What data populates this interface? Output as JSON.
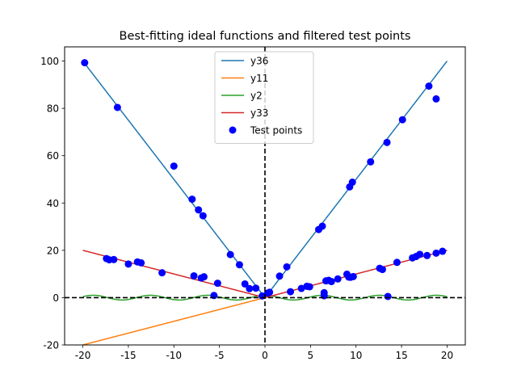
{
  "chart_data": {
    "type": "line",
    "title": "Best-fitting ideal functions and filtered test points",
    "xlabel": "",
    "ylabel": "",
    "xlim": [
      -22,
      22
    ],
    "ylim": [
      -20,
      106
    ],
    "xticks": [
      -20,
      -15,
      -10,
      -5,
      0,
      5,
      10,
      15,
      20
    ],
    "yticks": [
      -20,
      0,
      20,
      40,
      60,
      80,
      100
    ],
    "grid": false,
    "legend_position": "top-center",
    "reference_lines": [
      {
        "orientation": "horizontal",
        "value": 0,
        "style": "dashed",
        "color": "#000000"
      },
      {
        "orientation": "vertical",
        "value": 0,
        "style": "dashed",
        "color": "#000000"
      }
    ],
    "series": [
      {
        "name": "y36",
        "kind": "line",
        "color": "#1f77b4",
        "formula": "5*|x|",
        "x_range": [
          -20,
          20
        ]
      },
      {
        "name": "y11",
        "kind": "line",
        "color": "#ff7f0e",
        "formula": "x",
        "x_range": [
          -20,
          0
        ]
      },
      {
        "name": "y2",
        "kind": "line",
        "color": "#2ca02c",
        "formula": "cos(x)",
        "x_range": [
          -20,
          20
        ]
      },
      {
        "name": "y33",
        "kind": "line",
        "color": "#d62728",
        "formula": "|x|",
        "x_range": [
          -20,
          20
        ]
      },
      {
        "name": "Test points",
        "kind": "scatter",
        "color": "#0000ff",
        "points": [
          [
            -19.8,
            99.3
          ],
          [
            -16.2,
            80.4
          ],
          [
            -10.0,
            55.6
          ],
          [
            -8.0,
            41.6
          ],
          [
            -7.3,
            37.1
          ],
          [
            -6.8,
            34.6
          ],
          [
            -3.8,
            18.2
          ],
          [
            -2.8,
            13.9
          ],
          [
            -2.2,
            5.8
          ],
          [
            -1.7,
            3.8
          ],
          [
            -1.0,
            4.0
          ],
          [
            -0.3,
            0.7
          ],
          [
            0.3,
            1.9
          ],
          [
            0.5,
            2.3
          ],
          [
            1.6,
            9.1
          ],
          [
            2.4,
            13.0
          ],
          [
            5.9,
            28.8
          ],
          [
            6.3,
            30.2
          ],
          [
            9.3,
            46.8
          ],
          [
            9.6,
            48.8
          ],
          [
            11.6,
            57.4
          ],
          [
            13.4,
            65.6
          ],
          [
            15.1,
            75.2
          ],
          [
            18.0,
            89.4
          ],
          [
            18.8,
            84.0
          ],
          [
            -17.4,
            16.5
          ],
          [
            -17.1,
            16.0
          ],
          [
            -16.6,
            16.1
          ],
          [
            -15.0,
            14.2
          ],
          [
            -14.0,
            15.1
          ],
          [
            -13.6,
            14.7
          ],
          [
            -11.3,
            10.5
          ],
          [
            -7.8,
            9.2
          ],
          [
            -7.0,
            8.3
          ],
          [
            -6.7,
            8.8
          ],
          [
            -5.2,
            6.1
          ],
          [
            -5.6,
            0.9
          ],
          [
            2.8,
            2.5
          ],
          [
            4.0,
            3.9
          ],
          [
            4.6,
            4.8
          ],
          [
            4.9,
            4.6
          ],
          [
            6.5,
            2.1
          ],
          [
            6.5,
            0.8
          ],
          [
            6.7,
            7.1
          ],
          [
            7.0,
            7.3
          ],
          [
            7.3,
            6.8
          ],
          [
            8.0,
            7.9
          ],
          [
            9.0,
            9.9
          ],
          [
            9.2,
            8.7
          ],
          [
            9.4,
            8.6
          ],
          [
            9.7,
            8.9
          ],
          [
            12.6,
            12.4
          ],
          [
            12.9,
            11.9
          ],
          [
            13.5,
            0.5
          ],
          [
            14.5,
            14.9
          ],
          [
            16.2,
            16.8
          ],
          [
            16.6,
            17.4
          ],
          [
            17.0,
            18.3
          ],
          [
            17.8,
            17.8
          ],
          [
            18.8,
            18.8
          ],
          [
            19.5,
            19.6
          ]
        ]
      }
    ]
  }
}
